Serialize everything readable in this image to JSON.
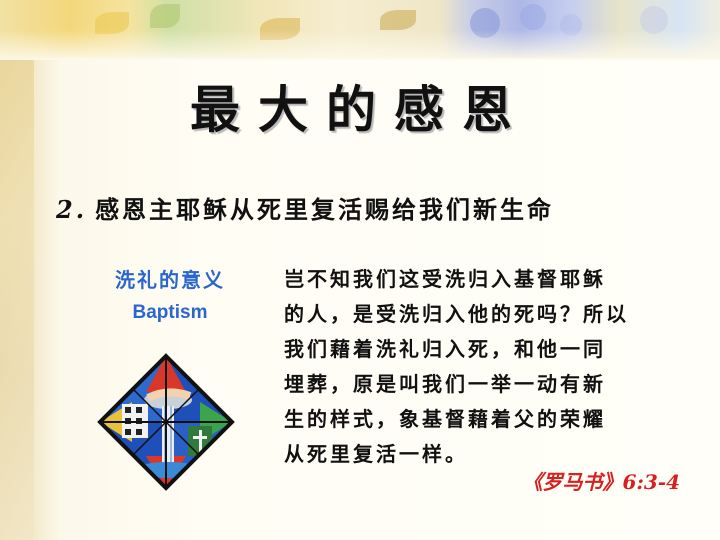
{
  "slide": {
    "title": "最大的感恩",
    "subtitle_number": "2.",
    "subtitle_text": "感恩主耶稣从死里复活赐给我们新生命"
  },
  "sidebar": {
    "label_cn": "洗礼的意义",
    "label_en": "Baptism",
    "image_icon": "stained-glass-baptism-window"
  },
  "verse": {
    "lines": [
      "岂不知我们这受洗归入基督耶稣",
      "的人，是受洗归入他的死吗？所以",
      "我们藉着洗礼归入死，和他一同",
      "埋葬，原是叫我们一举一动有新",
      "生的样式，象基督藉着父的荣耀",
      "从死里复活一样。"
    ],
    "reference": "《罗马书》6:3-4"
  },
  "colors": {
    "label_blue": "#2a66cc",
    "reference_red": "#d82020",
    "text": "#111111"
  }
}
